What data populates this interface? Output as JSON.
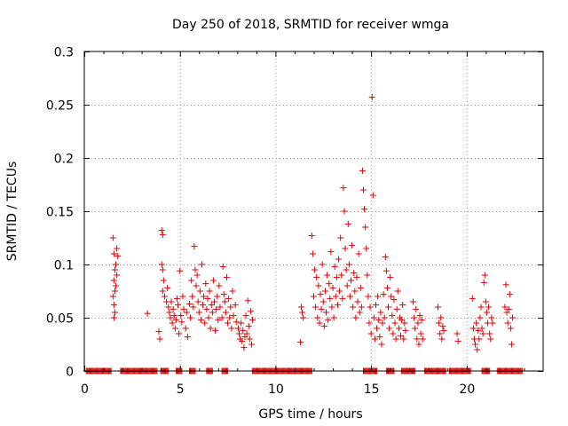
{
  "chart_data": {
    "type": "scatter",
    "title": "Day 250 of 2018, SRMTID for receiver wmga",
    "xlabel": "GPS time / hours",
    "ylabel": "SRMTID / TECUs",
    "xlim": [
      0,
      24
    ],
    "ylim": [
      0,
      0.3
    ],
    "xticks": [
      0,
      5,
      10,
      15,
      20
    ],
    "yticks": [
      0,
      0.05,
      0.1,
      0.15,
      0.2,
      0.25,
      0.3
    ],
    "xtick_labels": [
      "0",
      "5",
      "10",
      "15",
      "20"
    ],
    "ytick_labels": [
      "0",
      "0.05",
      "0.1",
      "0.15",
      "0.2",
      "0.25",
      "0.3"
    ],
    "grid": true,
    "marker": "plus",
    "color": "#e00000",
    "series": [
      {
        "name": "SRMTID",
        "points": [
          [
            1.5,
            0.125
          ],
          [
            1.55,
            0.11
          ],
          [
            1.6,
            0.095
          ],
          [
            1.55,
            0.085
          ],
          [
            1.6,
            0.075
          ],
          [
            1.5,
            0.07
          ],
          [
            1.55,
            0.062
          ],
          [
            1.6,
            0.055
          ],
          [
            1.55,
            0.05
          ],
          [
            1.65,
            0.1
          ],
          [
            1.7,
            0.115
          ],
          [
            1.75,
            0.108
          ],
          [
            1.7,
            0.09
          ],
          [
            1.65,
            0.08
          ],
          [
            3.3,
            0.054
          ],
          [
            3.9,
            0.037
          ],
          [
            3.95,
            0.03
          ],
          [
            4.05,
            0.132
          ],
          [
            4.1,
            0.128
          ],
          [
            4.05,
            0.1
          ],
          [
            4.1,
            0.095
          ],
          [
            4.15,
            0.085
          ],
          [
            4.1,
            0.075
          ],
          [
            4.2,
            0.07
          ],
          [
            4.3,
            0.065
          ],
          [
            4.35,
            0.078
          ],
          [
            4.4,
            0.06
          ],
          [
            4.45,
            0.055
          ],
          [
            4.5,
            0.05
          ],
          [
            4.55,
            0.065
          ],
          [
            4.6,
            0.045
          ],
          [
            4.65,
            0.058
          ],
          [
            4.7,
            0.052
          ],
          [
            4.75,
            0.04
          ],
          [
            4.8,
            0.048
          ],
          [
            4.85,
            0.068
          ],
          [
            4.9,
            0.062
          ],
          [
            4.95,
            0.035
          ],
          [
            5.0,
            0.094
          ],
          [
            5.05,
            0.052
          ],
          [
            5.1,
            0.046
          ],
          [
            5.15,
            0.07
          ],
          [
            5.2,
            0.058
          ],
          [
            5.3,
            0.04
          ],
          [
            5.35,
            0.055
          ],
          [
            5.4,
            0.032
          ],
          [
            5.5,
            0.063
          ],
          [
            5.55,
            0.05
          ],
          [
            5.6,
            0.085
          ],
          [
            5.65,
            0.07
          ],
          [
            5.7,
            0.06
          ],
          [
            5.75,
            0.117
          ],
          [
            5.8,
            0.095
          ],
          [
            5.85,
            0.08
          ],
          [
            5.9,
            0.09
          ],
          [
            5.95,
            0.065
          ],
          [
            6.0,
            0.055
          ],
          [
            6.05,
            0.075
          ],
          [
            6.1,
            0.048
          ],
          [
            6.15,
            0.1
          ],
          [
            6.2,
            0.062
          ],
          [
            6.25,
            0.07
          ],
          [
            6.3,
            0.045
          ],
          [
            6.35,
            0.082
          ],
          [
            6.4,
            0.058
          ],
          [
            6.45,
            0.068
          ],
          [
            6.5,
            0.05
          ],
          [
            6.55,
            0.075
          ],
          [
            6.6,
            0.04
          ],
          [
            6.65,
            0.062
          ],
          [
            6.7,
            0.055
          ],
          [
            6.75,
            0.085
          ],
          [
            6.8,
            0.065
          ],
          [
            6.85,
            0.038
          ],
          [
            6.9,
            0.058
          ],
          [
            6.95,
            0.07
          ],
          [
            7.0,
            0.048
          ],
          [
            7.05,
            0.08
          ],
          [
            7.1,
            0.06
          ],
          [
            7.2,
            0.05
          ],
          [
            7.25,
            0.098
          ],
          [
            7.3,
            0.072
          ],
          [
            7.35,
            0.065
          ],
          [
            7.4,
            0.055
          ],
          [
            7.45,
            0.088
          ],
          [
            7.5,
            0.045
          ],
          [
            7.55,
            0.068
          ],
          [
            7.6,
            0.05
          ],
          [
            7.65,
            0.06
          ],
          [
            7.7,
            0.04
          ],
          [
            7.75,
            0.075
          ],
          [
            7.8,
            0.052
          ],
          [
            7.9,
            0.062
          ],
          [
            7.95,
            0.046
          ],
          [
            8.05,
            0.04
          ],
          [
            8.1,
            0.035
          ],
          [
            8.15,
            0.03
          ],
          [
            8.2,
            0.045
          ],
          [
            8.25,
            0.028
          ],
          [
            8.3,
            0.038
          ],
          [
            8.35,
            0.022
          ],
          [
            8.4,
            0.032
          ],
          [
            8.45,
            0.052
          ],
          [
            8.5,
            0.035
          ],
          [
            8.55,
            0.066
          ],
          [
            8.6,
            0.042
          ],
          [
            8.65,
            0.03
          ],
          [
            8.7,
            0.056
          ],
          [
            8.75,
            0.025
          ],
          [
            8.8,
            0.048
          ],
          [
            11.3,
            0.027
          ],
          [
            11.35,
            0.06
          ],
          [
            11.4,
            0.055
          ],
          [
            11.45,
            0.05
          ],
          [
            11.9,
            0.127
          ],
          [
            11.95,
            0.11
          ],
          [
            12.0,
            0.07
          ],
          [
            12.05,
            0.095
          ],
          [
            12.1,
            0.06
          ],
          [
            12.15,
            0.088
          ],
          [
            12.2,
            0.05
          ],
          [
            12.25,
            0.08
          ],
          [
            12.3,
            0.045
          ],
          [
            12.35,
            0.072
          ],
          [
            12.4,
            0.058
          ],
          [
            12.45,
            0.1
          ],
          [
            12.5,
            0.065
          ],
          [
            12.55,
            0.042
          ],
          [
            12.6,
            0.075
          ],
          [
            12.65,
            0.055
          ],
          [
            12.7,
            0.09
          ],
          [
            12.75,
            0.048
          ],
          [
            12.8,
            0.082
          ],
          [
            12.85,
            0.068
          ],
          [
            12.9,
            0.112
          ],
          [
            12.95,
            0.06
          ],
          [
            13.0,
            0.078
          ],
          [
            13.05,
            0.05
          ],
          [
            13.1,
            0.098
          ],
          [
            13.15,
            0.07
          ],
          [
            13.2,
            0.088
          ],
          [
            13.25,
            0.062
          ],
          [
            13.3,
            0.105
          ],
          [
            13.35,
            0.075
          ],
          [
            13.4,
            0.125
          ],
          [
            13.45,
            0.09
          ],
          [
            13.5,
            0.068
          ],
          [
            13.55,
            0.172
          ],
          [
            13.6,
            0.15
          ],
          [
            13.65,
            0.115
          ],
          [
            13.7,
            0.095
          ],
          [
            13.75,
            0.08
          ],
          [
            13.8,
            0.138
          ],
          [
            13.85,
            0.1
          ],
          [
            13.9,
            0.07
          ],
          [
            13.95,
            0.085
          ],
          [
            14.0,
            0.118
          ],
          [
            14.05,
            0.06
          ],
          [
            14.1,
            0.092
          ],
          [
            14.15,
            0.075
          ],
          [
            14.2,
            0.05
          ],
          [
            14.25,
            0.088
          ],
          [
            14.3,
            0.065
          ],
          [
            14.35,
            0.11
          ],
          [
            14.4,
            0.055
          ],
          [
            14.45,
            0.078
          ],
          [
            14.5,
            0.06
          ],
          [
            14.55,
            0.188
          ],
          [
            14.6,
            0.17
          ],
          [
            14.65,
            0.152
          ],
          [
            14.7,
            0.135
          ],
          [
            14.75,
            0.115
          ],
          [
            14.8,
            0.09
          ],
          [
            14.85,
            0.07
          ],
          [
            14.9,
            0.045
          ],
          [
            14.95,
            0.06
          ],
          [
            15.0,
            0.035
          ],
          [
            15.05,
            0.257
          ],
          [
            15.1,
            0.165
          ],
          [
            15.15,
            0.05
          ],
          [
            15.2,
            0.03
          ],
          [
            15.25,
            0.062
          ],
          [
            15.3,
            0.04
          ],
          [
            15.35,
            0.07
          ],
          [
            15.4,
            0.048
          ],
          [
            15.45,
            0.032
          ],
          [
            15.5,
            0.055
          ],
          [
            15.55,
            0.025
          ],
          [
            15.6,
            0.045
          ],
          [
            15.65,
            0.072
          ],
          [
            15.7,
            0.05
          ],
          [
            15.75,
            0.107
          ],
          [
            15.8,
            0.094
          ],
          [
            15.85,
            0.078
          ],
          [
            15.9,
            0.06
          ],
          [
            15.95,
            0.04
          ],
          [
            16.0,
            0.088
          ],
          [
            16.05,
            0.07
          ],
          [
            16.1,
            0.052
          ],
          [
            16.15,
            0.035
          ],
          [
            16.2,
            0.067
          ],
          [
            16.25,
            0.045
          ],
          [
            16.3,
            0.03
          ],
          [
            16.35,
            0.058
          ],
          [
            16.4,
            0.075
          ],
          [
            16.45,
            0.04
          ],
          [
            16.5,
            0.05
          ],
          [
            16.55,
            0.033
          ],
          [
            16.6,
            0.048
          ],
          [
            16.65,
            0.062
          ],
          [
            16.7,
            0.03
          ],
          [
            16.75,
            0.045
          ],
          [
            16.8,
            0.038
          ],
          [
            17.2,
            0.065
          ],
          [
            17.25,
            0.05
          ],
          [
            17.3,
            0.04
          ],
          [
            17.35,
            0.058
          ],
          [
            17.4,
            0.03
          ],
          [
            17.45,
            0.045
          ],
          [
            17.5,
            0.025
          ],
          [
            17.55,
            0.052
          ],
          [
            17.6,
            0.035
          ],
          [
            17.65,
            0.048
          ],
          [
            17.7,
            0.03
          ],
          [
            18.5,
            0.06
          ],
          [
            18.55,
            0.045
          ],
          [
            18.6,
            0.035
          ],
          [
            18.65,
            0.05
          ],
          [
            18.7,
            0.03
          ],
          [
            18.75,
            0.042
          ],
          [
            18.8,
            0.038
          ],
          [
            19.5,
            0.035
          ],
          [
            19.55,
            0.028
          ],
          [
            20.3,
            0.068
          ],
          [
            20.35,
            0.04
          ],
          [
            20.4,
            0.03
          ],
          [
            20.45,
            0.025
          ],
          [
            20.5,
            0.045
          ],
          [
            20.55,
            0.02
          ],
          [
            20.6,
            0.038
          ],
          [
            20.65,
            0.03
          ],
          [
            20.7,
            0.05
          ],
          [
            20.75,
            0.06
          ],
          [
            20.8,
            0.04
          ],
          [
            20.85,
            0.035
          ],
          [
            20.9,
            0.083
          ],
          [
            20.95,
            0.09
          ],
          [
            21.0,
            0.065
          ],
          [
            21.05,
            0.055
          ],
          [
            21.1,
            0.045
          ],
          [
            21.15,
            0.06
          ],
          [
            21.2,
            0.035
          ],
          [
            21.25,
            0.03
          ],
          [
            21.3,
            0.05
          ],
          [
            21.35,
            0.045
          ],
          [
            22.0,
            0.06
          ],
          [
            22.05,
            0.081
          ],
          [
            22.1,
            0.055
          ],
          [
            22.15,
            0.045
          ],
          [
            22.2,
            0.058
          ],
          [
            22.25,
            0.072
          ],
          [
            22.3,
            0.04
          ],
          [
            22.35,
            0.025
          ],
          [
            22.4,
            0.05
          ]
        ],
        "zero_ranges": [
          [
            0.1,
            1.4
          ],
          [
            1.9,
            3.8
          ],
          [
            4.0,
            4.4
          ],
          [
            4.8,
            5.1
          ],
          [
            5.5,
            5.8
          ],
          [
            6.4,
            6.7
          ],
          [
            7.2,
            7.5
          ],
          [
            8.8,
            11.9
          ],
          [
            14.6,
            15.3
          ],
          [
            15.8,
            16.2
          ],
          [
            16.6,
            17.3
          ],
          [
            17.8,
            18.9
          ],
          [
            19.1,
            20.2
          ],
          [
            20.8,
            21.2
          ],
          [
            21.6,
            22.9
          ]
        ]
      }
    ]
  }
}
